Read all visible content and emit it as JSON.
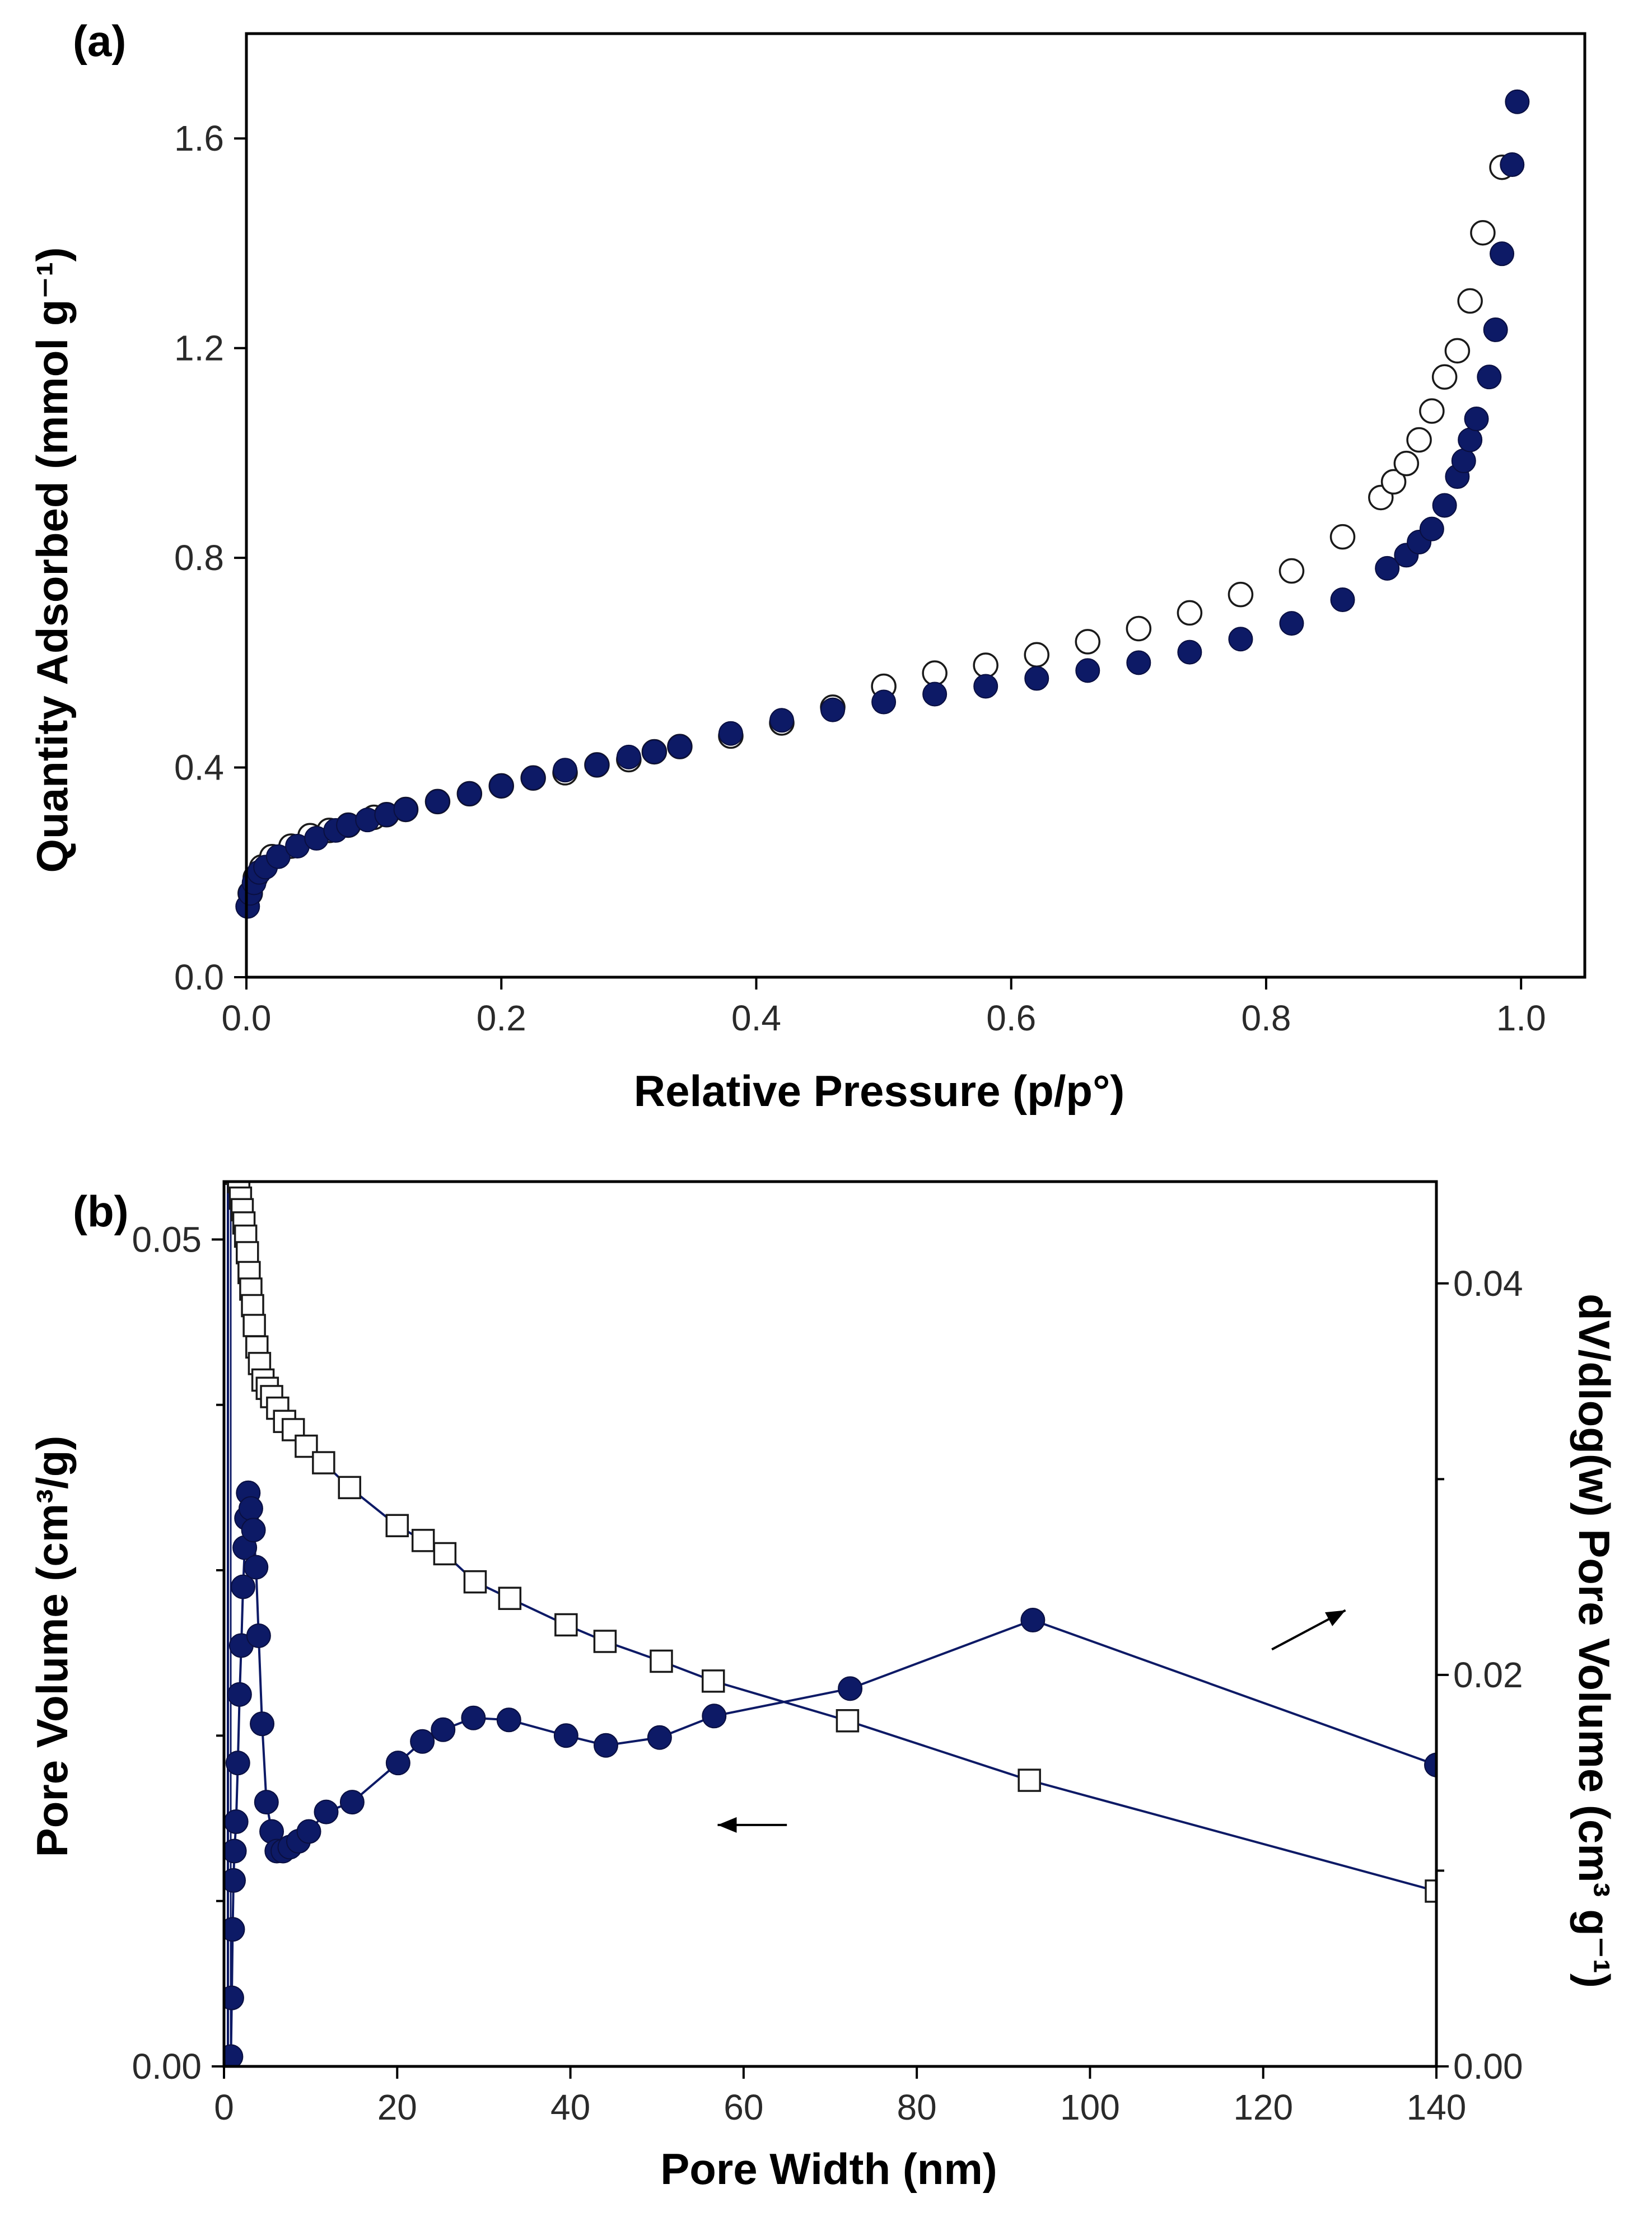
{
  "colors": {
    "series": "#0d1a66",
    "axis": "#000000",
    "background": "#ffffff"
  },
  "chart_data": [
    {
      "type": "scatter",
      "panel_label": "(a)",
      "xlabel": "Relative Pressure (p/p°)",
      "ylabel": "Quantity Adsorbed (mmol g⁻¹)",
      "xlim": [
        0,
        1.05
      ],
      "ylim": [
        0,
        1.8
      ],
      "xticks": [
        0.0,
        0.2,
        0.4,
        0.6,
        0.8,
        1.0
      ],
      "xtick_labels": [
        "0.0",
        "0.2",
        "0.4",
        "0.6",
        "0.8",
        "1.0"
      ],
      "yticks": [
        0.0,
        0.4,
        0.8,
        1.2,
        1.6
      ],
      "ytick_labels": [
        "0.0",
        "0.4",
        "0.8",
        "1.2",
        "1.6"
      ],
      "grid": false,
      "series": [
        {
          "marker": "open-circle",
          "x": [
            0.003,
            0.007,
            0.012,
            0.02,
            0.035,
            0.05,
            0.065,
            0.08,
            0.1,
            0.11,
            0.125,
            0.15,
            0.175,
            0.2,
            0.225,
            0.25,
            0.275,
            0.3,
            0.32,
            0.34,
            0.38,
            0.42,
            0.46,
            0.5,
            0.54,
            0.58,
            0.62,
            0.66,
            0.7,
            0.74,
            0.78,
            0.82,
            0.86,
            0.89,
            0.9,
            0.91,
            0.92,
            0.93,
            0.94,
            0.95,
            0.96,
            0.97,
            0.985
          ],
          "y": [
            0.16,
            0.19,
            0.21,
            0.23,
            0.25,
            0.27,
            0.28,
            0.29,
            0.305,
            0.31,
            0.32,
            0.335,
            0.35,
            0.365,
            0.38,
            0.39,
            0.405,
            0.415,
            0.43,
            0.44,
            0.46,
            0.485,
            0.515,
            0.555,
            0.58,
            0.595,
            0.615,
            0.64,
            0.665,
            0.695,
            0.73,
            0.775,
            0.84,
            0.915,
            0.945,
            0.98,
            1.025,
            1.08,
            1.145,
            1.195,
            1.29,
            1.42,
            1.545
          ]
        },
        {
          "marker": "filled-circle",
          "x": [
            0.001,
            0.003,
            0.006,
            0.01,
            0.015,
            0.025,
            0.04,
            0.055,
            0.07,
            0.08,
            0.095,
            0.11,
            0.125,
            0.15,
            0.175,
            0.2,
            0.225,
            0.25,
            0.275,
            0.3,
            0.32,
            0.34,
            0.38,
            0.42,
            0.46,
            0.5,
            0.54,
            0.58,
            0.62,
            0.66,
            0.7,
            0.74,
            0.78,
            0.82,
            0.86,
            0.895,
            0.91,
            0.92,
            0.93,
            0.94,
            0.95,
            0.955,
            0.96,
            0.965,
            0.975,
            0.98,
            0.985,
            0.993,
            0.997
          ],
          "y": [
            0.135,
            0.16,
            0.18,
            0.2,
            0.21,
            0.23,
            0.25,
            0.265,
            0.28,
            0.29,
            0.3,
            0.31,
            0.32,
            0.335,
            0.35,
            0.365,
            0.38,
            0.395,
            0.405,
            0.42,
            0.43,
            0.44,
            0.465,
            0.49,
            0.51,
            0.525,
            0.54,
            0.555,
            0.57,
            0.585,
            0.6,
            0.62,
            0.645,
            0.675,
            0.72,
            0.78,
            0.805,
            0.83,
            0.855,
            0.9,
            0.955,
            0.985,
            1.025,
            1.065,
            1.145,
            1.235,
            1.38,
            1.55,
            1.67
          ]
        }
      ]
    },
    {
      "type": "line",
      "panel_label": "(b)",
      "xlabel": "Pore Width (nm)",
      "ylabel": "Pore Volume (cm³/g)",
      "y2label": "dV/dlog(w) Pore Volume (cm³ g⁻¹)",
      "xlim": [
        0,
        140
      ],
      "ylim": [
        0,
        0.0535
      ],
      "y2lim": [
        0,
        0.0452
      ],
      "xticks": [
        0,
        20,
        40,
        60,
        80,
        100,
        120,
        140
      ],
      "xtick_labels": [
        "0",
        "20",
        "40",
        "60",
        "80",
        "100",
        "120",
        "140"
      ],
      "yticks": [
        0.0,
        0.05
      ],
      "ytick_labels": [
        "0.00",
        "0.05"
      ],
      "y_minor_ticks": [
        0.01,
        0.02,
        0.03,
        0.04
      ],
      "y2ticks": [
        0.0,
        0.02,
        0.04
      ],
      "y2tick_labels": [
        "0.00",
        "0.02",
        "0.04"
      ],
      "y2_minor_ticks": [
        0.01,
        0.03
      ],
      "grid": false,
      "annotations": [
        {
          "type": "arrow",
          "direction": "left",
          "meaning": "open squares read on the left axis",
          "from": [
            65,
            0.0146
          ],
          "to": [
            57,
            0.0146
          ]
        },
        {
          "type": "arrow",
          "direction": "right",
          "meaning": "filled circles read on the right axis",
          "from": [
            121,
            0.0213
          ],
          "to": [
            129.5,
            0.0233
          ]
        }
      ],
      "series": [
        {
          "marker": "open-square",
          "axis": "left",
          "x": [
            1.1,
            1.3,
            1.5,
            1.7,
            1.9,
            2.1,
            2.3,
            2.5,
            2.7,
            2.9,
            3.1,
            3.3,
            3.5,
            3.8,
            4.1,
            4.5,
            5.0,
            5.5,
            6.2,
            7.0,
            8.0,
            9.5,
            11.5,
            14.5,
            20.0,
            23.0,
            25.5,
            29.0,
            33.0,
            39.5,
            44.0,
            50.5,
            56.5,
            72.0,
            93.0,
            140.0
          ],
          "y": [
            0.0545,
            0.0545,
            0.054,
            0.0535,
            0.0525,
            0.0518,
            0.051,
            0.0502,
            0.0492,
            0.048,
            0.047,
            0.046,
            0.0448,
            0.0435,
            0.0425,
            0.0415,
            0.041,
            0.0405,
            0.0398,
            0.039,
            0.0385,
            0.0375,
            0.0365,
            0.035,
            0.0327,
            0.0318,
            0.031,
            0.0293,
            0.0283,
            0.0267,
            0.0257,
            0.0245,
            0.0233,
            0.0209,
            0.0173,
            0.0106
          ]
        },
        {
          "marker": "filled-circle",
          "axis": "right",
          "x": [
            0.8,
            0.9,
            1.0,
            1.1,
            1.2,
            1.4,
            1.6,
            1.8,
            2.0,
            2.2,
            2.4,
            2.6,
            2.8,
            3.1,
            3.4,
            3.7,
            4.0,
            4.4,
            4.9,
            5.5,
            6.1,
            6.8,
            7.6,
            8.6,
            9.8,
            11.8,
            14.8,
            20.1,
            22.9,
            25.3,
            28.8,
            32.9,
            39.5,
            44.1,
            50.3,
            56.6,
            72.3,
            93.4,
            140.0
          ],
          "y": [
            0.0005,
            0.0035,
            0.007,
            0.0095,
            0.011,
            0.0125,
            0.0155,
            0.019,
            0.0215,
            0.0245,
            0.0265,
            0.028,
            0.0293,
            0.0285,
            0.0274,
            0.0255,
            0.022,
            0.0175,
            0.0135,
            0.012,
            0.011,
            0.011,
            0.0112,
            0.0115,
            0.012,
            0.013,
            0.0135,
            0.0155,
            0.0166,
            0.0172,
            0.0178,
            0.0177,
            0.0169,
            0.0164,
            0.0168,
            0.0179,
            0.0193,
            0.0228,
            0.0154
          ]
        }
      ]
    }
  ]
}
